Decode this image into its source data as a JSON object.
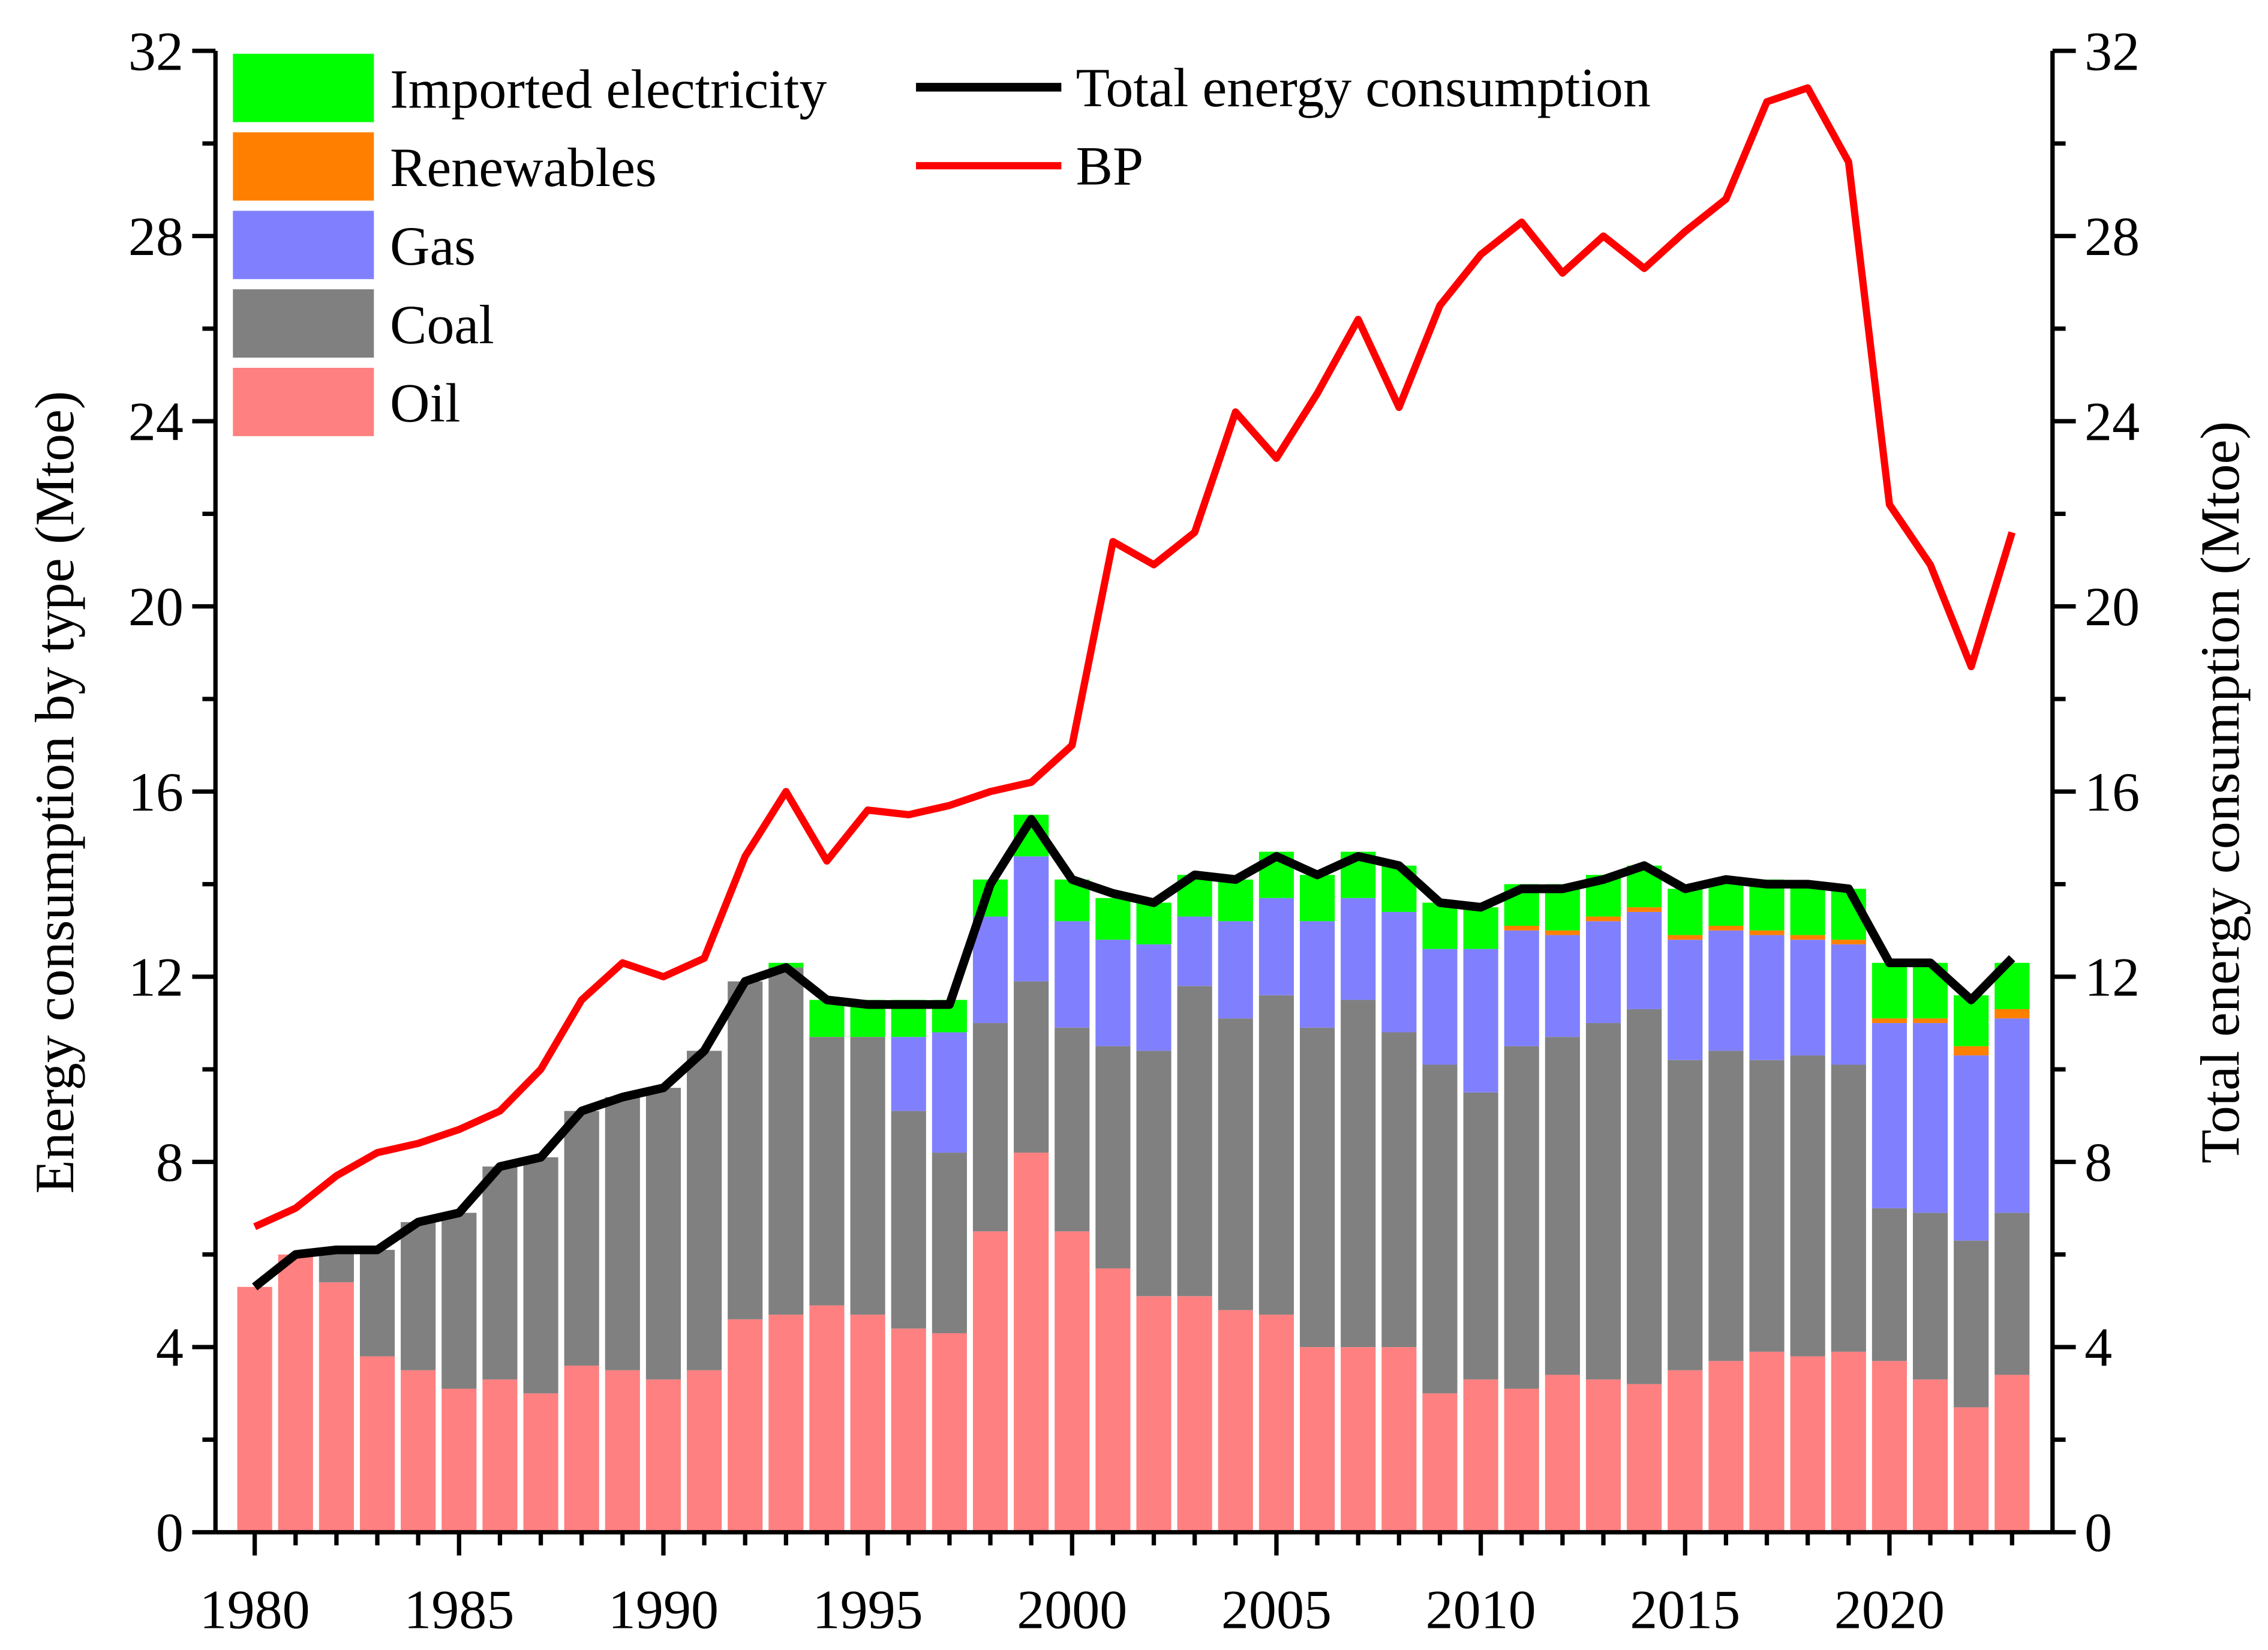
{
  "chart_data": {
    "type": "bar",
    "stacked": true,
    "x": [
      1980,
      1981,
      1982,
      1983,
      1984,
      1985,
      1986,
      1987,
      1988,
      1989,
      1990,
      1991,
      1992,
      1993,
      1994,
      1995,
      1996,
      1997,
      1998,
      1999,
      2000,
      2001,
      2002,
      2003,
      2004,
      2005,
      2006,
      2007,
      2008,
      2009,
      2010,
      2011,
      2012,
      2013,
      2014,
      2015,
      2016,
      2017,
      2018,
      2019,
      2020,
      2021,
      2022,
      2023
    ],
    "series": [
      {
        "name": "Oil",
        "color": "#ff8080",
        "values": [
          5.3,
          6.0,
          5.4,
          3.8,
          3.5,
          3.1,
          3.3,
          3.0,
          3.6,
          3.5,
          3.3,
          3.5,
          4.6,
          4.7,
          4.9,
          4.7,
          4.4,
          4.3,
          6.5,
          8.2,
          6.5,
          5.7,
          5.1,
          5.1,
          4.8,
          4.7,
          4.0,
          4.0,
          4.0,
          3.0,
          3.3,
          3.1,
          3.4,
          3.3,
          3.2,
          3.5,
          3.7,
          3.9,
          3.8,
          3.9,
          3.7,
          3.3,
          2.7,
          3.4
        ]
      },
      {
        "name": "Coal",
        "color": "#808080",
        "values": [
          0,
          0,
          0.7,
          2.3,
          3.2,
          3.8,
          4.6,
          5.1,
          5.5,
          5.9,
          6.3,
          6.9,
          7.3,
          7.5,
          5.8,
          6.0,
          4.7,
          3.9,
          4.5,
          3.7,
          4.4,
          4.8,
          5.3,
          6.7,
          6.3,
          6.9,
          6.9,
          7.5,
          6.8,
          7.1,
          6.2,
          7.4,
          7.3,
          7.7,
          8.1,
          6.7,
          6.7,
          6.3,
          6.5,
          6.2,
          3.3,
          3.6,
          3.6,
          3.5
        ]
      },
      {
        "name": "Gas",
        "color": "#8080ff",
        "values": [
          0,
          0,
          0,
          0,
          0,
          0,
          0,
          0,
          0,
          0,
          0,
          0,
          0,
          0,
          0,
          0,
          1.6,
          2.6,
          2.3,
          2.7,
          2.3,
          2.3,
          2.3,
          1.5,
          2.1,
          2.1,
          2.3,
          2.2,
          2.6,
          2.5,
          3.1,
          2.5,
          2.2,
          2.2,
          2.1,
          2.6,
          2.6,
          2.7,
          2.5,
          2.6,
          4.0,
          4.1,
          4.0,
          4.2
        ]
      },
      {
        "name": "Renewables",
        "color": "#ff8000",
        "values": [
          0,
          0,
          0,
          0,
          0,
          0,
          0,
          0,
          0,
          0,
          0,
          0,
          0,
          0,
          0,
          0,
          0,
          0,
          0,
          0,
          0,
          0,
          0,
          0,
          0,
          0,
          0,
          0,
          0,
          0,
          0,
          0.1,
          0.1,
          0.1,
          0.1,
          0.1,
          0.1,
          0.1,
          0.1,
          0.1,
          0.1,
          0.1,
          0.2,
          0.2
        ]
      },
      {
        "name": "Imported electricity",
        "color": "#00ff00",
        "values": [
          0,
          0,
          0,
          0,
          0,
          0,
          0,
          0,
          0,
          0,
          0,
          0,
          0,
          0.1,
          0.8,
          0.8,
          0.8,
          0.7,
          0.8,
          0.9,
          0.9,
          0.9,
          0.9,
          0.9,
          0.9,
          1.0,
          1.0,
          1.0,
          1.0,
          1.0,
          0.9,
          0.9,
          1.0,
          0.9,
          0.9,
          1.0,
          1.0,
          1.1,
          1.1,
          1.1,
          1.2,
          1.2,
          1.1,
          1.0
        ]
      }
    ],
    "lines": [
      {
        "name": "Total energy consumption",
        "color": "#000000",
        "axis": "right",
        "values": [
          5.3,
          6.0,
          6.1,
          6.1,
          6.7,
          6.9,
          7.9,
          8.1,
          9.1,
          9.4,
          9.6,
          10.4,
          11.9,
          12.2,
          11.5,
          11.4,
          11.4,
          11.4,
          14.0,
          15.4,
          14.1,
          13.8,
          13.6,
          14.2,
          14.1,
          14.6,
          14.2,
          14.6,
          14.4,
          13.6,
          13.5,
          13.9,
          13.9,
          14.1,
          14.4,
          13.9,
          14.1,
          14.0,
          14.0,
          13.9,
          12.3,
          12.3,
          11.5,
          12.4
        ]
      },
      {
        "name": "BP",
        "color": "#ff0000",
        "axis": "right",
        "values": [
          6.6,
          7.0,
          7.7,
          8.2,
          8.4,
          8.7,
          9.1,
          10.0,
          11.5,
          12.3,
          12.0,
          12.4,
          14.6,
          16.0,
          14.5,
          15.6,
          15.5,
          15.7,
          16.0,
          16.2,
          17.0,
          21.4,
          20.9,
          21.6,
          24.2,
          23.2,
          24.6,
          26.2,
          24.3,
          26.5,
          27.6,
          28.3,
          27.2,
          28.0,
          27.3,
          28.1,
          28.8,
          30.9,
          31.2,
          29.6,
          22.2,
          20.9,
          18.7,
          21.6
        ]
      }
    ],
    "ylabel": "Energy consumption by type (Mtoe)",
    "ylabel_right": "Total energy consumption (Mtoe)",
    "xlabel": "",
    "ylim": [
      0,
      32
    ],
    "yticks": [
      "0",
      "4",
      "8",
      "12",
      "16",
      "20",
      "24",
      "28",
      "32"
    ],
    "xticks": [
      "1980",
      "1985",
      "1990",
      "1995",
      "2000",
      "2005",
      "2010",
      "2015",
      "2020"
    ],
    "grid": false,
    "legend_placement": "top-left",
    "legend_bars": [
      "Imported electricity",
      "Renewables",
      "Gas",
      "Coal",
      "Oil"
    ],
    "legend_lines": [
      "Total energy consumption",
      "BP"
    ]
  }
}
